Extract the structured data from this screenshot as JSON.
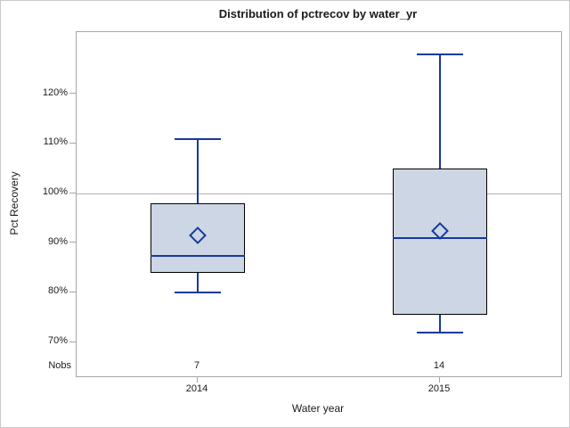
{
  "chart_data": {
    "type": "boxplot",
    "title": "Distribution of pctrecov by water_yr",
    "xlabel": "Water year",
    "ylabel": "Pct Recovery",
    "nobs_row_label": "Nobs",
    "ylim": [
      63.2,
      132.5
    ],
    "y_ticks": [
      {
        "value": 70,
        "label": "70%"
      },
      {
        "value": 80,
        "label": "80%"
      },
      {
        "value": 90,
        "label": "90%"
      },
      {
        "value": 100,
        "label": "100%"
      },
      {
        "value": 110,
        "label": "110%"
      },
      {
        "value": 120,
        "label": "120%"
      }
    ],
    "reference_lines": [
      100
    ],
    "grid": "single gray horizontal reference line at 100%",
    "legend_position": "none",
    "categories": [
      "2014",
      "2015"
    ],
    "series": [
      {
        "category": "2014",
        "nobs": 7,
        "whisker_low": 80,
        "q1": 84,
        "median": 87.5,
        "q3": 98,
        "whisker_high": 111,
        "mean": 91.5
      },
      {
        "category": "2015",
        "nobs": 14,
        "whisker_low": 72,
        "q1": 75.5,
        "median": 91,
        "q3": 105,
        "whisker_high": 128,
        "mean": 92.4
      }
    ]
  },
  "colors": {
    "box_fill": "#ccd6e4",
    "box_border": "#000000",
    "line": "#16399c",
    "frame": "#a3a6ab",
    "reference": "#b0b0b3",
    "text": "#1a1a1a"
  }
}
